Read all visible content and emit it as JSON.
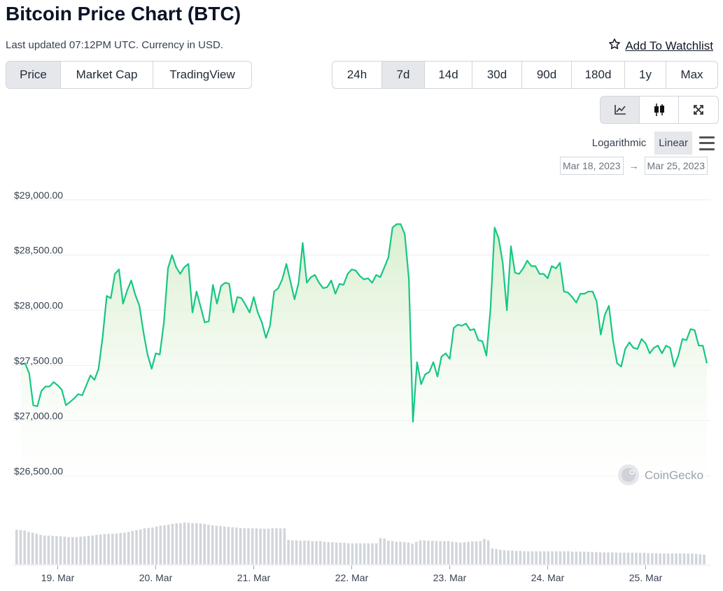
{
  "header": {
    "title": "Bitcoin Price Chart (BTC)",
    "updated": "Last updated 07:12PM UTC. Currency in USD.",
    "watchlist_label": "Add To Watchlist",
    "watchlist_icon": "star-icon"
  },
  "tabs": [
    {
      "label": "Price",
      "active": true
    },
    {
      "label": "Market Cap",
      "active": false
    },
    {
      "label": "TradingView",
      "active": false
    }
  ],
  "ranges": [
    {
      "label": "24h",
      "active": false
    },
    {
      "label": "7d",
      "active": true
    },
    {
      "label": "14d",
      "active": false
    },
    {
      "label": "30d",
      "active": false
    },
    {
      "label": "90d",
      "active": false
    },
    {
      "label": "180d",
      "active": false
    },
    {
      "label": "1y",
      "active": false
    },
    {
      "label": "Max",
      "active": false
    }
  ],
  "tools": [
    {
      "icon": "line-chart-icon",
      "active": true
    },
    {
      "icon": "candlestick-icon",
      "active": false
    },
    {
      "icon": "expand-icon",
      "active": false
    }
  ],
  "scale": {
    "options": [
      {
        "label": "Logarithmic",
        "active": false
      },
      {
        "label": "Linear",
        "active": true
      }
    ],
    "menu_icon": "hamburger-menu-icon"
  },
  "date_range": {
    "from": "Mar 18, 2023",
    "arrow": "→",
    "to": "Mar 25, 2023"
  },
  "watermark": "CoinGecko",
  "colors": {
    "line": "#16c784",
    "fill_top": "#d8efcf",
    "volume": "#d1d5db",
    "grid": "#eeeeee"
  },
  "chart_data": {
    "type": "area",
    "title": "",
    "xlabel": "",
    "ylabel": "",
    "ylim": [
      26300,
      29100
    ],
    "xlim": [
      0,
      7
    ],
    "y_ticks": [
      "$29,000.00",
      "$28,500.00",
      "$28,000.00",
      "$27,500.00",
      "$27,000.00",
      "$26,500.00"
    ],
    "y_tick_values": [
      29000,
      28500,
      28000,
      27500,
      27000,
      26500
    ],
    "x_ticks": [
      "19. Mar",
      "20. Mar",
      "21. Mar",
      "22. Mar",
      "23. Mar",
      "24. Mar",
      "25. Mar"
    ],
    "x_tick_values": [
      0.375,
      1.375,
      2.375,
      3.375,
      4.375,
      5.375,
      6.375
    ],
    "grid": true,
    "legend": "none",
    "series": [
      {
        "values": [
          27510,
          27520,
          27430,
          27140,
          27130,
          27270,
          27310,
          27310,
          27350,
          27320,
          27280,
          27140,
          27170,
          27200,
          27240,
          27230,
          27320,
          27410,
          27370,
          27470,
          27760,
          28130,
          28110,
          28330,
          28370,
          28060,
          28180,
          28270,
          28140,
          28040,
          27800,
          27600,
          27470,
          27610,
          27600,
          27890,
          28380,
          28500,
          28390,
          28330,
          28390,
          28420,
          27980,
          28170,
          28030,
          27890,
          27900,
          28230,
          28060,
          28220,
          28250,
          28240,
          27980,
          28120,
          28110,
          28050,
          27980,
          28120,
          27980,
          27890,
          27750,
          27860,
          28170,
          28200,
          28280,
          28420,
          28260,
          28100,
          28250,
          28610,
          28250,
          28300,
          28320,
          28250,
          28200,
          28210,
          28270,
          28150,
          28240,
          28230,
          28330,
          28370,
          28360,
          28310,
          28280,
          28290,
          28250,
          28320,
          28300,
          28390,
          28480,
          28750,
          28780,
          28780,
          28690,
          28280,
          26990,
          27530,
          27330,
          27420,
          27440,
          27530,
          27400,
          27580,
          27610,
          27560,
          27840,
          27870,
          27860,
          27880,
          27820,
          27830,
          27730,
          27720,
          27590,
          28010,
          28750,
          28650,
          28430,
          28000,
          28580,
          28340,
          28330,
          28380,
          28450,
          28400,
          28400,
          28330,
          28330,
          28290,
          28400,
          28380,
          28430,
          28170,
          28160,
          28120,
          28070,
          28150,
          28150,
          28170,
          28170,
          28080,
          27780,
          27960,
          28040,
          27730,
          27520,
          27490,
          27650,
          27710,
          27660,
          27650,
          27740,
          27700,
          27610,
          27660,
          27680,
          27610,
          27680,
          27660,
          27490,
          27590,
          27740,
          27730,
          27830,
          27820,
          27680,
          27680,
          27520
        ]
      }
    ],
    "volume": [
      95,
      94,
      93,
      89,
      87,
      84,
      81,
      79,
      79,
      78,
      78,
      77,
      76,
      75,
      75,
      75,
      76,
      77,
      78,
      79,
      81,
      82,
      83,
      84,
      84,
      85,
      86,
      87,
      89,
      92,
      94,
      96,
      99,
      100,
      101,
      104,
      106,
      107,
      109,
      111,
      113,
      113,
      115,
      114,
      113,
      113,
      112,
      111,
      109,
      107,
      106,
      105,
      104,
      103,
      102,
      101,
      100,
      99,
      99,
      99,
      99,
      98,
      98,
      98,
      99,
      99,
      99,
      99,
      67,
      66,
      66,
      65,
      65,
      65,
      64,
      64,
      64,
      62,
      61,
      61,
      60,
      60,
      59,
      58,
      58,
      58,
      58,
      58,
      58,
      58,
      58,
      72,
      71,
      65,
      64,
      62,
      62,
      61,
      60,
      57,
      62,
      66,
      66,
      65,
      65,
      64,
      64,
      64,
      64,
      62,
      61,
      60,
      61,
      62,
      63,
      63,
      64,
      70,
      66,
      44,
      42,
      40,
      39,
      38,
      38,
      37,
      37,
      36,
      36,
      36,
      36,
      36,
      36,
      36,
      36,
      36,
      36,
      36,
      36,
      35,
      35,
      35,
      35,
      34,
      34,
      34,
      33,
      33,
      33,
      33,
      32,
      32,
      32,
      32,
      32,
      32,
      32,
      32,
      31,
      31,
      31,
      30,
      30,
      30,
      30,
      30,
      30,
      30,
      30,
      30,
      29,
      28,
      27
    ]
  }
}
